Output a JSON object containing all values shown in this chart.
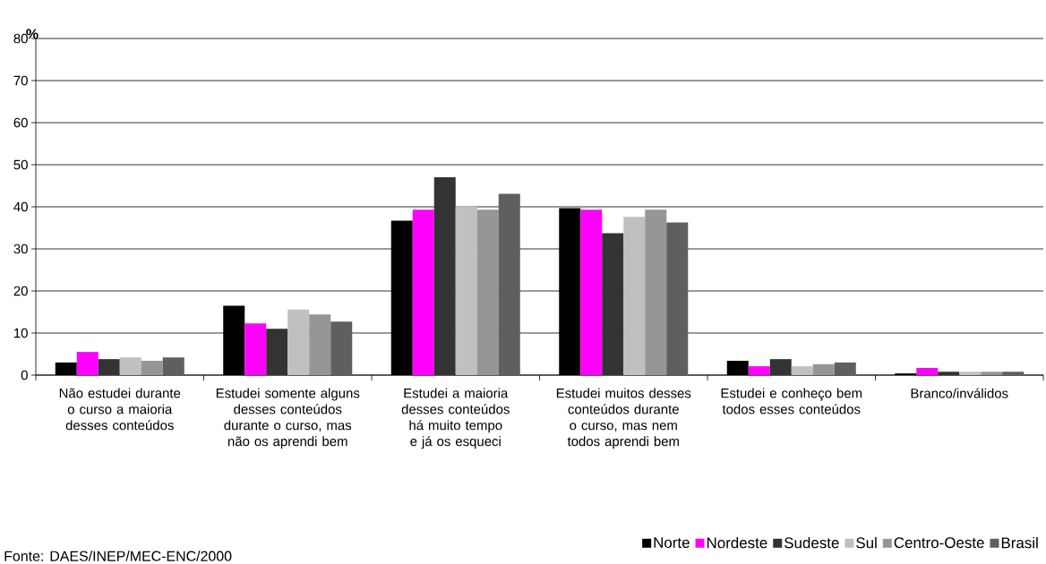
{
  "chart_data": {
    "type": "bar",
    "ylabel": "%",
    "categories": [
      "Não estudei durante o curso a maioria desses conteúdos",
      "Estudei somente alguns desses conteúdos durante o curso, mas não os aprendi bem",
      "Estudei a maioria desses conteúdos há muito tempo e já os esqueci",
      "Estudei muitos desses conteúdos durante o curso, mas nem todos aprendi bem",
      "Estudei e conheço bem todos esses conteúdos",
      "Branco/inválidos"
    ],
    "series": [
      {
        "name": "Norte",
        "color": "#000000",
        "values": [
          3.0,
          16.5,
          36.7,
          39.7,
          3.4,
          0.4
        ]
      },
      {
        "name": "Nordeste",
        "color": "#ff00ff",
        "values": [
          5.5,
          12.3,
          39.3,
          39.3,
          2.1,
          1.7
        ]
      },
      {
        "name": "Sudeste",
        "color": "#333333",
        "values": [
          3.8,
          11.0,
          47.0,
          33.7,
          3.8,
          0.8
        ]
      },
      {
        "name": "Sul",
        "color": "#c0c0c0",
        "values": [
          4.2,
          15.6,
          40.1,
          37.6,
          2.1,
          0.8
        ]
      },
      {
        "name": "Centro-Oeste",
        "color": "#969696",
        "values": [
          3.4,
          14.4,
          39.3,
          39.3,
          2.6,
          0.8
        ]
      },
      {
        "name": "Brasil",
        "color": "#5f5f5f",
        "values": [
          4.2,
          12.7,
          43.1,
          36.3,
          3.0,
          0.8
        ]
      }
    ],
    "ylim": [
      0,
      80
    ],
    "yticks": [
      0,
      10,
      20,
      30,
      40,
      50,
      60,
      70,
      80
    ],
    "grid": "y",
    "legend": "bottom right",
    "annotations": [
      "Fonte: DAES/INEP/MEC-ENC/2000"
    ]
  }
}
